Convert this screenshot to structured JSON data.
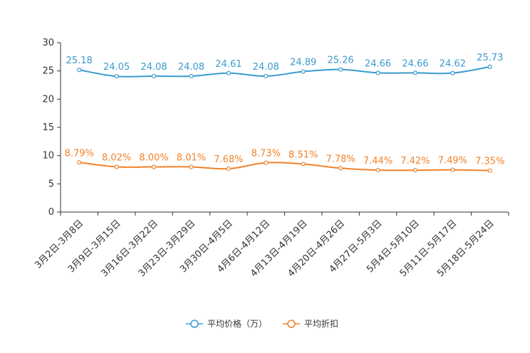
{
  "chart_data": {
    "type": "line",
    "categories": [
      "3月2日-3月8日",
      "3月9日-3月15日",
      "3月16日-3月22日",
      "3月23日-3月29日",
      "3月30日-4月5日",
      "4月6日-4月12日",
      "4月13日-4月19日",
      "4月20日-4月26日",
      "4月27日-5月3日",
      "5月4日-5月10日",
      "5月11日-5月17日",
      "5月18日-5月24日"
    ],
    "series": [
      {
        "name": "平均价格（万）",
        "color": "#3a9bd0",
        "values": [
          25.18,
          24.05,
          24.08,
          24.08,
          24.61,
          24.08,
          24.89,
          25.26,
          24.66,
          24.66,
          24.62,
          25.73
        ],
        "labels": [
          "25.18",
          "24.05",
          "24.08",
          "24.08",
          "24.61",
          "24.08",
          "24.89",
          "25.26",
          "24.66",
          "24.66",
          "24.62",
          "25.73"
        ]
      },
      {
        "name": "平均折扣",
        "color": "#f0822a",
        "values": [
          8.79,
          8.02,
          8.0,
          8.01,
          7.68,
          8.73,
          8.51,
          7.78,
          7.44,
          7.42,
          7.49,
          7.35
        ],
        "labels": [
          "8.79%",
          "8.02%",
          "8.00%",
          "8.01%",
          "7.68%",
          "8.73%",
          "8.51%",
          "7.78%",
          "7.44%",
          "7.42%",
          "7.49%",
          "7.35%"
        ]
      }
    ],
    "yticks": [
      "0",
      "5",
      "10",
      "15",
      "20",
      "25",
      "30"
    ],
    "ylim": [
      0,
      30
    ],
    "title": "",
    "xlabel": "",
    "ylabel": "",
    "legend_position": "bottom-center"
  }
}
